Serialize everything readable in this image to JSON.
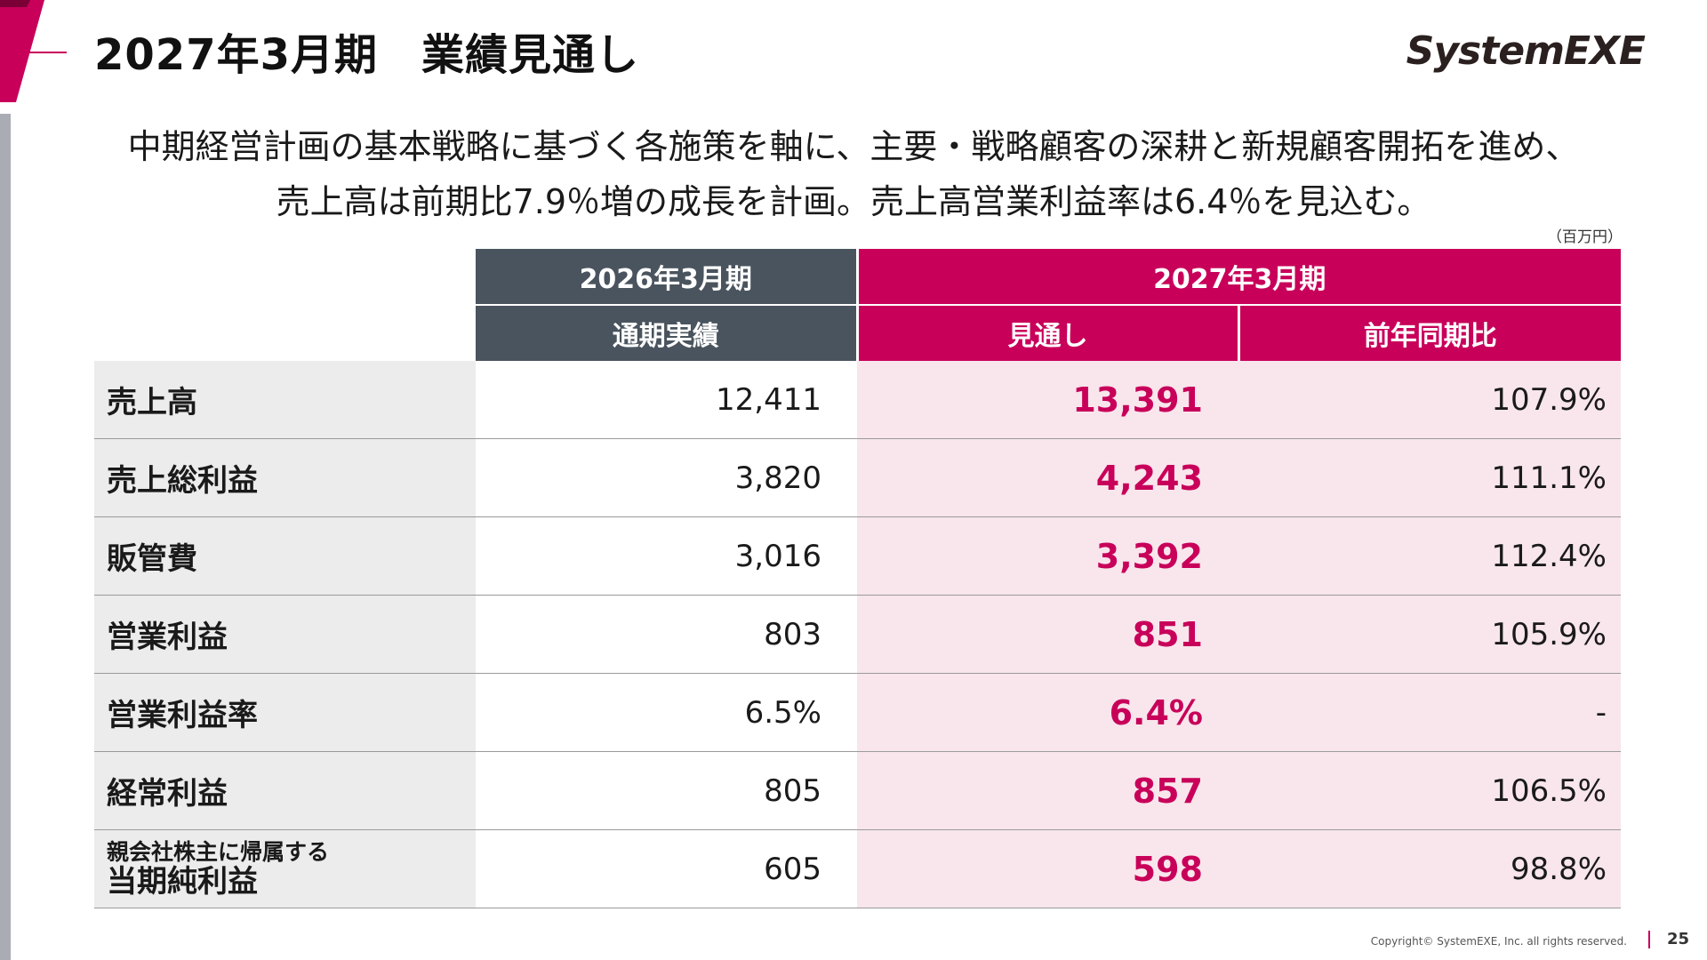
{
  "colors": {
    "accent": "#c8005a",
    "header_dark": "#4a545e",
    "forecast_bg": "#f8e6ec",
    "label_bg": "#ececec"
  },
  "header": {
    "title": "2027年3月期　業績見通し",
    "logo": "SystemEXE"
  },
  "summary": {
    "line1": "中期経営計画の基本戦略に基づく各施策を軸に、主要・戦略顧客の深耕と新規顧客開拓を進め、",
    "line2": "売上高は前期比7.9％増の成長を計画。売上高営業利益率は6.4％を見込む。"
  },
  "table": {
    "unit": "（百万円）",
    "period_prev": "2026年3月期",
    "period_cur": "2027年3月期",
    "col_prev": "通期実績",
    "col_forecast": "見通し",
    "col_yoy": "前年同期比",
    "rows": [
      {
        "label": "売上高",
        "prev": "12,411",
        "forecast": "13,391",
        "yoy": "107.9%"
      },
      {
        "label": "売上総利益",
        "prev": "3,820",
        "forecast": "4,243",
        "yoy": "111.1%"
      },
      {
        "label": "販管費",
        "prev": "3,016",
        "forecast": "3,392",
        "yoy": "112.4%"
      },
      {
        "label": "営業利益",
        "prev": "803",
        "forecast": "851",
        "yoy": "105.9%"
      },
      {
        "label": "営業利益率",
        "prev": "6.5%",
        "forecast": "6.4%",
        "yoy": "-"
      },
      {
        "label": "経常利益",
        "prev": "805",
        "forecast": "857",
        "yoy": "106.5%"
      },
      {
        "label_small": "親会社株主に帰属する",
        "label": "当期純利益",
        "prev": "605",
        "forecast": "598",
        "yoy": "98.8%"
      }
    ]
  },
  "footer": {
    "copyright": "Copyright© SystemEXE, Inc. all rights reserved.",
    "page": "25"
  }
}
